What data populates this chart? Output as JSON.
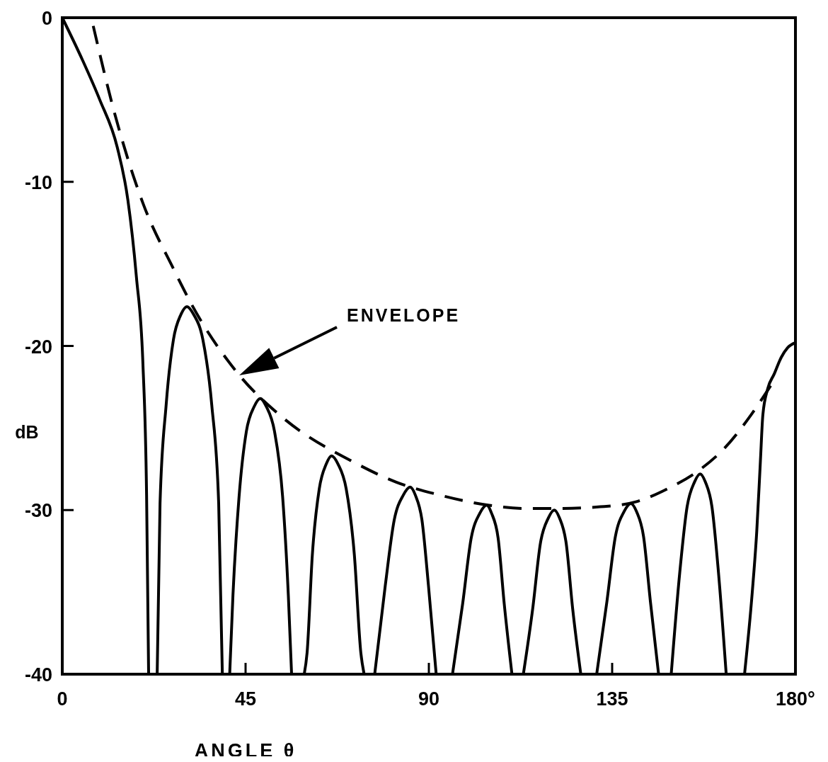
{
  "chart_data": {
    "type": "line",
    "xlabel": "ANGLE θ",
    "ylabel": "dB",
    "xlim": [
      0,
      180
    ],
    "ylim": [
      -40,
      0
    ],
    "xticks": [
      0,
      45,
      90,
      135,
      {
        "value": 180,
        "label": "180°"
      }
    ],
    "yticks": [
      0,
      -10,
      -20,
      -30,
      -40
    ],
    "grid": false,
    "marker": "none",
    "annotations": [
      "ENVELOPE"
    ],
    "series": [
      {
        "color": "#000000",
        "line_style": "solid",
        "x": [
          0,
          5.0,
          9.2,
          13.5,
          16.1,
          18.2,
          19.8,
          20.7,
          21.2,
          22.2,
          23.3,
          24.0,
          25.5,
          27.3,
          29.1,
          30.6,
          32.3,
          34.5,
          36.7,
          38.4,
          39.3,
          40.2,
          41.1,
          41.9,
          43.4,
          45.2,
          47.1,
          48.6,
          50.1,
          52.1,
          54.1,
          55.5,
          56.3,
          57.8,
          59.4,
          60.1,
          61.4,
          63.1,
          64.8,
          66.1,
          67.7,
          69.7,
          71.7,
          73.3,
          74.1,
          75.4,
          76.7,
          79.3,
          81.5,
          83.7,
          85.4,
          86.7,
          88.3,
          89.9,
          91.8,
          93.8,
          95.8,
          98.3,
          100.4,
          102.5,
          104.2,
          105.4,
          107.0,
          108.5,
          110.4,
          111.8,
          113.2,
          115.5,
          117.4,
          119.3,
          120.8,
          122.1,
          123.7,
          125.3,
          127.3,
          129.2,
          131.2,
          133.7,
          135.8,
          137.9,
          139.6,
          141.0,
          142.7,
          144.4,
          146.4,
          148.0,
          149.5,
          151.6,
          153.4,
          155.2,
          156.6,
          157.9,
          159.5,
          161.1,
          163.0,
          165.2,
          167.5,
          169.4,
          170.5,
          171.4,
          172.0,
          173.2,
          174.8,
          176.5,
          178.1,
          180
        ],
        "values": [
          0,
          -2.6,
          -5.0,
          -7.9,
          -11.1,
          -15.8,
          -21.1,
          -29.1,
          -40,
          null,
          -40,
          -29.6,
          -23.6,
          -19.6,
          -18.1,
          -17.6,
          -18.1,
          -19.6,
          -23.6,
          -29.6,
          -40,
          null,
          -40,
          -35.2,
          -29.2,
          -25.2,
          -23.7,
          -23.2,
          -23.7,
          -25.2,
          -29.2,
          -35.2,
          -40,
          null,
          -40,
          -38.7,
          -32.7,
          -28.7,
          -27.2,
          -26.7,
          -27.2,
          -28.7,
          -32.7,
          -38.7,
          -40,
          null,
          -40,
          -34.6,
          -30.6,
          -29.1,
          -28.6,
          -29.1,
          -30.6,
          -34.6,
          -40,
          null,
          -40,
          -35.7,
          -31.7,
          -30.2,
          -29.7,
          -30.2,
          -31.7,
          -35.7,
          -40,
          null,
          -40,
          -36,
          -32,
          -30.5,
          -30,
          -30.5,
          -32,
          -36,
          -40,
          null,
          -40,
          -35.6,
          -31.6,
          -30.1,
          -29.6,
          -30.1,
          -31.6,
          -35.6,
          -40,
          null,
          -40,
          -33.8,
          -29.8,
          -28.3,
          -27.8,
          -28.3,
          -29.8,
          -33.8,
          -40,
          null,
          -40,
          -35,
          -31.3,
          -27,
          -24.2,
          -22.6,
          -21.7,
          -20.7,
          -20.1,
          -19.8
        ]
      },
      {
        "color": "#000000",
        "line_style": "dashed",
        "x": [
          7.6,
          12.5,
          19.8,
          27.3,
          31.6,
          43.2,
          53.8,
          71.7,
          82,
          92.9,
          104.5,
          113.4,
          122.4,
          132.1,
          140.8,
          148.6,
          156.2,
          162.7,
          169.1,
          175
        ],
        "values": [
          -0.5,
          -5.5,
          -11.3,
          -15.3,
          -17.4,
          -21.7,
          -24.3,
          -27.1,
          -28.3,
          -29.1,
          -29.7,
          -29.9,
          -29.9,
          -29.8,
          -29.5,
          -28.7,
          -27.6,
          -26.2,
          -24.2,
          -22.0
        ]
      }
    ]
  }
}
